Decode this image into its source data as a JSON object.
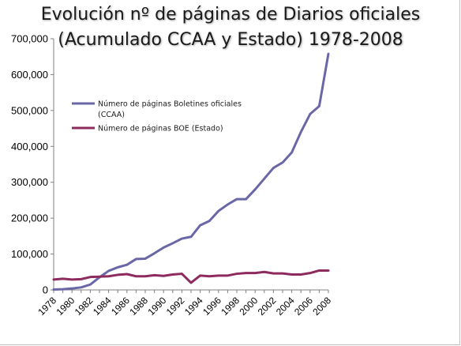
{
  "chart_data": {
    "type": "line",
    "title_line1": "Evolución nº de páginas de Diarios oficiales",
    "title_line2": "(Acumulado CCAA y Estado) 1978-2008",
    "xlabel": "",
    "ylabel": "",
    "ylim": [
      0,
      700000
    ],
    "yticks": [
      0,
      100000,
      200000,
      300000,
      400000,
      500000,
      600000,
      700000
    ],
    "ytick_labels": [
      "0",
      "100,000",
      "200,000",
      "300,000",
      "400,000",
      "500,000",
      "600,000",
      "700,000"
    ],
    "x": [
      1978,
      1979,
      1980,
      1981,
      1982,
      1983,
      1984,
      1985,
      1986,
      1987,
      1988,
      1989,
      1990,
      1991,
      1992,
      1993,
      1994,
      1995,
      1996,
      1997,
      1998,
      1999,
      2000,
      2001,
      2002,
      2003,
      2004,
      2005,
      2006,
      2007,
      2008
    ],
    "xtick_labels": [
      "1978",
      "1980",
      "1982",
      "1984",
      "1986",
      "1988",
      "1990",
      "1992",
      "1994",
      "1996",
      "1998",
      "2000",
      "2002",
      "2004",
      "2006",
      "2008"
    ],
    "grid": false,
    "legend_position": "upper-left",
    "series": [
      {
        "name": "Número de páginas Boletines oficiales (CCAA)",
        "legend_line1": "Número de páginas Boletines oficiales",
        "legend_line2": "(CCAA)",
        "color": "#6a67a6",
        "values": [
          1000,
          2000,
          4000,
          7000,
          15000,
          35000,
          53000,
          63000,
          70000,
          86000,
          87000,
          102000,
          118000,
          130000,
          143000,
          148000,
          180000,
          192000,
          220000,
          238000,
          253000,
          253000,
          280000,
          310000,
          340000,
          355000,
          383000,
          440000,
          490000,
          512000,
          658000
        ]
      },
      {
        "name": "Número de páginas BOE (Estado)",
        "legend_line1": "Número de páginas BOE (Estado)",
        "color": "#8e2b5e",
        "values": [
          29000,
          31000,
          29000,
          30000,
          36000,
          37000,
          38000,
          42000,
          44000,
          38000,
          38000,
          41000,
          39000,
          43000,
          45000,
          20000,
          40000,
          38000,
          40000,
          40000,
          45000,
          47000,
          47000,
          50000,
          46000,
          46000,
          43000,
          43000,
          47000,
          54000,
          54000
        ]
      }
    ]
  }
}
